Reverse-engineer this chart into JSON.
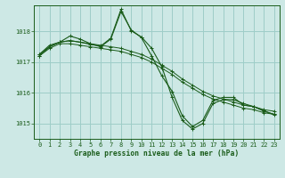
{
  "background_color": "#cde8e5",
  "grid_color": "#9ecdc8",
  "line_color": "#1a5c1a",
  "xlabel": "Graphe pression niveau de la mer (hPa)",
  "xlim": [
    -0.5,
    23.5
  ],
  "ylim": [
    1014.5,
    1018.85
  ],
  "yticks": [
    1015,
    1016,
    1017,
    1018
  ],
  "xticks": [
    0,
    1,
    2,
    3,
    4,
    5,
    6,
    7,
    8,
    9,
    10,
    11,
    12,
    13,
    14,
    15,
    16,
    17,
    18,
    19,
    20,
    21,
    22,
    23
  ],
  "series1_x": [
    0,
    1,
    2,
    3,
    4,
    5,
    6,
    7,
    8,
    9,
    10,
    11,
    12,
    13,
    14,
    15,
    16,
    17,
    18,
    19,
    20,
    21,
    22,
    23
  ],
  "series1_y": [
    1017.25,
    1017.55,
    1017.65,
    1017.85,
    1017.75,
    1017.6,
    1017.5,
    1017.75,
    1018.65,
    1018.05,
    1017.8,
    1017.2,
    1016.55,
    1016.05,
    1015.25,
    1014.9,
    1015.1,
    1015.75,
    1015.85,
    1015.85,
    1015.6,
    1015.55,
    1015.4,
    1015.3
  ],
  "series2_x": [
    0,
    1,
    2,
    3,
    4,
    5,
    6,
    7,
    8,
    9,
    10,
    11,
    12,
    13,
    14,
    15,
    16,
    17,
    18,
    19,
    20,
    21,
    22,
    23
  ],
  "series2_y": [
    1017.25,
    1017.5,
    1017.65,
    1017.7,
    1017.65,
    1017.6,
    1017.55,
    1017.5,
    1017.45,
    1017.35,
    1017.25,
    1017.1,
    1016.9,
    1016.7,
    1016.45,
    1016.25,
    1016.05,
    1015.9,
    1015.8,
    1015.7,
    1015.6,
    1015.55,
    1015.45,
    1015.4
  ],
  "series3_x": [
    0,
    1,
    2,
    3,
    4,
    5,
    6,
    7,
    8,
    9,
    10,
    11,
    12,
    13,
    14,
    15,
    16,
    17,
    18,
    19,
    20,
    21,
    22,
    23
  ],
  "series3_y": [
    1017.2,
    1017.45,
    1017.6,
    1017.6,
    1017.55,
    1017.5,
    1017.45,
    1017.4,
    1017.35,
    1017.25,
    1017.15,
    1017.0,
    1016.8,
    1016.6,
    1016.35,
    1016.15,
    1015.95,
    1015.8,
    1015.7,
    1015.6,
    1015.5,
    1015.45,
    1015.35,
    1015.3
  ],
  "series4_x": [
    0,
    1,
    2,
    3,
    4,
    5,
    6,
    7,
    8,
    9,
    10,
    11,
    12,
    13,
    14,
    15,
    16,
    17,
    18,
    19,
    20,
    21,
    22,
    23
  ],
  "series4_y": [
    1017.2,
    1017.5,
    1017.65,
    1017.7,
    1017.65,
    1017.58,
    1017.52,
    1017.78,
    1018.72,
    1018.02,
    1017.82,
    1017.45,
    1016.85,
    1015.85,
    1015.1,
    1014.82,
    1015.0,
    1015.65,
    1015.78,
    1015.78,
    1015.65,
    1015.55,
    1015.42,
    1015.28
  ]
}
